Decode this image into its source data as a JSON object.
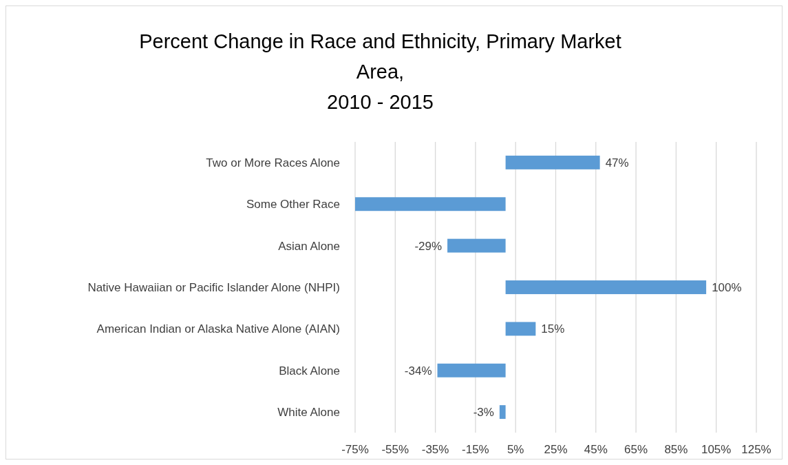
{
  "chart_data": {
    "type": "bar",
    "orientation": "horizontal",
    "title": "Percent Change in Race and Ethnicity, Primary Market Area,\n2010 - 2015",
    "categories": [
      "Two or More Races Alone",
      "Some Other Race",
      "Asian Alone",
      "Native Hawaiian or Pacific Islander Alone (NHPI)",
      "American Indian or Alaska Native Alone (AIAN)",
      "Black Alone",
      "White Alone"
    ],
    "values": [
      47,
      -75,
      -29,
      100,
      15,
      -34,
      -3
    ],
    "value_labels": [
      "47%",
      null,
      "-29%",
      "100%",
      "15%",
      "-34%",
      "-3%"
    ],
    "color": "#5b9bd5",
    "xlim": [
      -75,
      125
    ],
    "xticks": [
      {
        "value": -75,
        "label": "-75%"
      },
      {
        "value": -55,
        "label": "-55%"
      },
      {
        "value": -35,
        "label": "-35%"
      },
      {
        "value": -15,
        "label": "-15%"
      },
      {
        "value": 5,
        "label": "5%"
      },
      {
        "value": 25,
        "label": "25%"
      },
      {
        "value": 45,
        "label": "45%"
      },
      {
        "value": 65,
        "label": "65%"
      },
      {
        "value": 85,
        "label": "85%"
      },
      {
        "value": 105,
        "label": "105%"
      },
      {
        "value": 125,
        "label": "125%"
      }
    ],
    "grid": "x"
  }
}
